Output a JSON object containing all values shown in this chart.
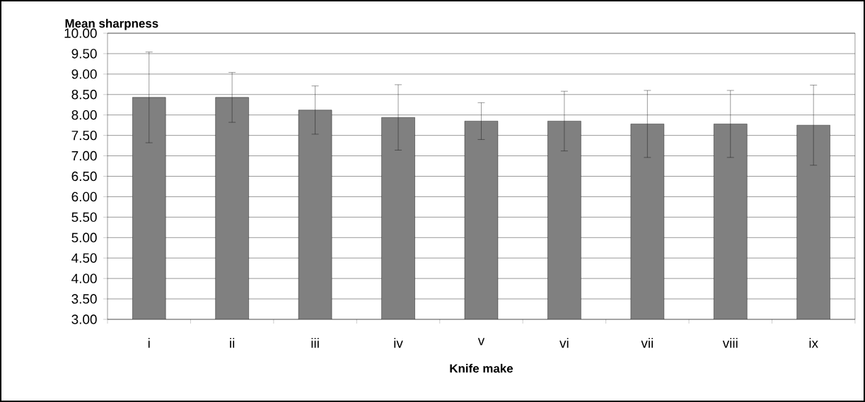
{
  "chart_data": {
    "type": "bar",
    "xlabel": "Knife make",
    "ylabel": "Mean sharpness",
    "categories": [
      "i",
      "ii",
      "iii",
      "iv",
      "v",
      "vi",
      "vii",
      "viii",
      "ix"
    ],
    "values": [
      8.43,
      8.43,
      8.12,
      7.94,
      7.85,
      7.85,
      7.78,
      7.78,
      7.75
    ],
    "errors": [
      1.11,
      0.61,
      0.59,
      0.8,
      0.45,
      0.73,
      0.82,
      0.82,
      0.98
    ],
    "color": "#808080",
    "ylim": [
      3,
      10
    ],
    "yticks": [
      {
        "value": 3,
        "label": "3.00"
      },
      {
        "value": 3.5,
        "label": "3.50"
      },
      {
        "value": 4,
        "label": "4.00"
      },
      {
        "value": 4.5,
        "label": "4.50"
      },
      {
        "value": 5,
        "label": "5.00"
      },
      {
        "value": 5.5,
        "label": "5.50"
      },
      {
        "value": 6,
        "label": "6.00"
      },
      {
        "value": 6.5,
        "label": "6.50"
      },
      {
        "value": 7,
        "label": "7.00"
      },
      {
        "value": 7.5,
        "label": "7.50"
      },
      {
        "value": 8,
        "label": "8.00"
      },
      {
        "value": 8.5,
        "label": "8.50"
      },
      {
        "value": 9,
        "label": "9.00"
      },
      {
        "value": 9.5,
        "label": "9.50"
      },
      {
        "value": 10,
        "label": "10.00"
      }
    ],
    "grid": "y"
  }
}
